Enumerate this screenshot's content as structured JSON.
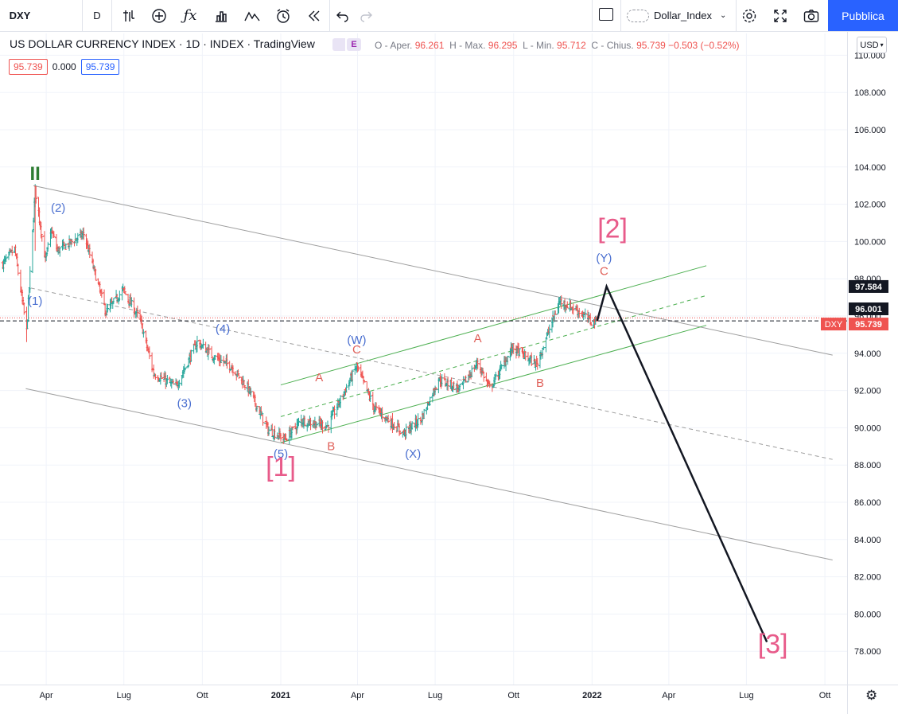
{
  "toolbar": {
    "symbol": "DXY",
    "interval": "D",
    "compare_icon": "compare-icon",
    "add_icon": "plus-circle-icon",
    "indicators_icon": "fx-icon",
    "bars_icon": "bar-chart-icon",
    "templates_icon": "indicator-templates-icon",
    "alert_icon": "alarm-clock-icon",
    "replay_icon": "replay-icon",
    "undo_icon": "undo-icon",
    "redo_icon": "redo-icon",
    "layout_name": "Dollar_Index",
    "publish_label": "Pubblica"
  },
  "legend": {
    "title": "US DOLLAR CURRENCY INDEX · 1D · INDEX · TradingView",
    "e_badge": "E",
    "open_label": "O - Aper.",
    "open": "96.261",
    "high_label": "H - Max.",
    "high": "96.295",
    "low_label": "L - Min.",
    "low": "95.712",
    "close_label": "C - Chius.",
    "close": "95.739",
    "change": "−0.503 (−0.52%)",
    "value_red": "95.739",
    "value_plain": "0.000",
    "value_blue": "95.739"
  },
  "currency": "USD",
  "price_tags": {
    "target": "97.584",
    "level": "96.001",
    "symbol": "DXY",
    "last": "95.739"
  },
  "colors": {
    "up": "#26a69a",
    "down": "#ef5350",
    "channel_gray": "#9e9e9e",
    "channel_green": "#4caf50",
    "wave_pink": "#e85b8a",
    "wave_blue": "#4a6fd0",
    "wave_red": "#e0615a",
    "wave_green": "#2e7d32",
    "accent": "#2962ff"
  },
  "chart_data": {
    "type": "ohlc",
    "title": "US DOLLAR CURRENCY INDEX",
    "ylim": [
      76.5,
      110.5
    ],
    "y_ticks": [
      "78.000",
      "80.000",
      "82.000",
      "84.000",
      "86.000",
      "88.000",
      "90.000",
      "92.000",
      "94.000",
      "96.000",
      "98.000",
      "100.000",
      "102.000",
      "104.000",
      "106.000",
      "108.000",
      "110.000"
    ],
    "x_ticks": [
      "Apr",
      "Lug",
      "Ott",
      "2021",
      "Apr",
      "Lug",
      "Ott",
      "2022",
      "Apr",
      "Lug",
      "Ott"
    ],
    "price_path": [
      {
        "date": "2020-02-10",
        "close": 98.8
      },
      {
        "date": "2020-02-24",
        "close": 99.6
      },
      {
        "date": "2020-03-09",
        "close": 95.2
      },
      {
        "date": "2020-03-19",
        "close": 102.8
      },
      {
        "date": "2020-03-31",
        "close": 99.0
      },
      {
        "date": "2020-04-07",
        "close": 100.6
      },
      {
        "date": "2020-04-14",
        "close": 99.5
      },
      {
        "date": "2020-05-01",
        "close": 100.0
      },
      {
        "date": "2020-05-15",
        "close": 100.4
      },
      {
        "date": "2020-06-10",
        "close": 96.2
      },
      {
        "date": "2020-06-30",
        "close": 97.4
      },
      {
        "date": "2020-07-20",
        "close": 95.8
      },
      {
        "date": "2020-08-05",
        "close": 92.9
      },
      {
        "date": "2020-08-31",
        "close": 92.2
      },
      {
        "date": "2020-09-25",
        "close": 94.6
      },
      {
        "date": "2020-10-15",
        "close": 93.8
      },
      {
        "date": "2020-11-04",
        "close": 93.3
      },
      {
        "date": "2020-11-25",
        "close": 92.0
      },
      {
        "date": "2020-12-17",
        "close": 89.9
      },
      {
        "date": "2021-01-06",
        "close": 89.4
      },
      {
        "date": "2021-01-25",
        "close": 90.4
      },
      {
        "date": "2021-02-25",
        "close": 90.1
      },
      {
        "date": "2021-03-31",
        "close": 93.3
      },
      {
        "date": "2021-04-20",
        "close": 91.1
      },
      {
        "date": "2021-05-25",
        "close": 89.7
      },
      {
        "date": "2021-06-15",
        "close": 90.5
      },
      {
        "date": "2021-07-05",
        "close": 92.6
      },
      {
        "date": "2021-07-30",
        "close": 92.1
      },
      {
        "date": "2021-08-20",
        "close": 93.5
      },
      {
        "date": "2021-09-03",
        "close": 92.1
      },
      {
        "date": "2021-09-30",
        "close": 94.3
      },
      {
        "date": "2021-10-28",
        "close": 93.4
      },
      {
        "date": "2021-11-24",
        "close": 96.8
      },
      {
        "date": "2021-12-15",
        "close": 96.3
      },
      {
        "date": "2021-12-31",
        "close": 95.7
      },
      {
        "date": "2022-01-07",
        "close": 95.74
      }
    ],
    "annotations": [
      {
        "label": "II",
        "date": "2020-03-19",
        "price": 103.3,
        "color": "green"
      },
      {
        "label": "(1)",
        "date": "2020-03-19",
        "price": 96.6,
        "color": "blue"
      },
      {
        "label": "(2)",
        "date": "2020-04-15",
        "price": 101.6,
        "color": "blue"
      },
      {
        "label": "(3)",
        "date": "2020-09-10",
        "price": 91.1,
        "color": "blue"
      },
      {
        "label": "(4)",
        "date": "2020-10-25",
        "price": 95.1,
        "color": "blue"
      },
      {
        "label": "(5)",
        "date": "2021-01-01",
        "price": 88.4,
        "color": "blue"
      },
      {
        "label": "[1]",
        "date": "2021-01-01",
        "price": 87.4,
        "color": "pink"
      },
      {
        "label": "A",
        "date": "2021-02-15",
        "price": 92.5,
        "color": "red"
      },
      {
        "label": "B",
        "date": "2021-03-01",
        "price": 88.8,
        "color": "red"
      },
      {
        "label": "C",
        "date": "2021-03-31",
        "price": 94.0,
        "color": "red"
      },
      {
        "label": "(W)",
        "date": "2021-03-31",
        "price": 94.5,
        "color": "blue"
      },
      {
        "label": "(X)",
        "date": "2021-06-05",
        "price": 88.4,
        "color": "blue"
      },
      {
        "label": "A",
        "date": "2021-08-20",
        "price": 94.6,
        "color": "red"
      },
      {
        "label": "B",
        "date": "2021-11-01",
        "price": 92.2,
        "color": "red"
      },
      {
        "label": "C",
        "date": "2022-01-15",
        "price": 98.2,
        "color": "red"
      },
      {
        "label": "(Y)",
        "date": "2022-01-15",
        "price": 98.9,
        "color": "blue"
      },
      {
        "label": "[2]",
        "date": "2022-01-25",
        "price": 100.2,
        "color": "pink"
      },
      {
        "label": "[3]",
        "date": "2022-08-01",
        "price": 77.9,
        "color": "pink"
      }
    ],
    "projection": [
      {
        "date": "2022-01-07",
        "price": 95.74
      },
      {
        "date": "2022-01-18",
        "price": 97.584
      },
      {
        "date": "2022-07-25",
        "price": 78.5
      }
    ],
    "channels": {
      "gray_upper": [
        {
          "date": "2020-03-17",
          "price": 103.0
        },
        {
          "date": "2022-10-10",
          "price": 93.9
        }
      ],
      "gray_middle": [
        {
          "date": "2020-03-14",
          "price": 97.5
        },
        {
          "date": "2022-10-10",
          "price": 88.3
        }
      ],
      "gray_lower": [
        {
          "date": "2020-03-08",
          "price": 92.1
        },
        {
          "date": "2022-10-10",
          "price": 82.9
        }
      ],
      "green_upper": [
        {
          "date": "2021-01-01",
          "price": 92.3
        },
        {
          "date": "2022-05-15",
          "price": 98.7
        }
      ],
      "green_middle": [
        {
          "date": "2021-01-01",
          "price": 90.6
        },
        {
          "date": "2022-05-15",
          "price": 97.1
        }
      ],
      "green_lower": [
        {
          "date": "2021-01-01",
          "price": 89.2
        },
        {
          "date": "2022-05-15",
          "price": 95.5
        }
      ]
    },
    "horizontal_lines": [
      {
        "price": 95.739,
        "style": "dashed-black"
      },
      {
        "price": 95.9,
        "style": "dotted-red"
      }
    ]
  }
}
